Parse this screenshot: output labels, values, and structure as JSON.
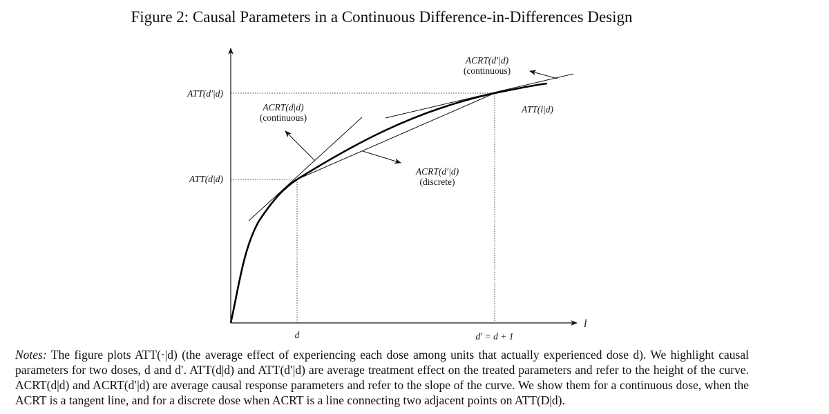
{
  "figure": {
    "title": "Figure 2: Causal Parameters in a Continuous Difference-in-Differences Design",
    "y_tick_high": "ATT(d′|d)",
    "y_tick_low": "ATT(d|d)",
    "x_axis_label": "l",
    "x_tick_d": "d",
    "x_tick_dprime": "d′ = d + 1",
    "annotations": {
      "acrt_dd_continuous_line1": "ACRT(d|d)",
      "acrt_dd_continuous_line2": "(continuous)",
      "acrt_dpd_continuous_line1": "ACRT(d′|d)",
      "acrt_dpd_continuous_line2": "(continuous)",
      "acrt_dpd_discrete_line1": "ACRT(d′|d)",
      "acrt_dpd_discrete_line2": "(discrete)",
      "curve_label": "ATT(l|d)"
    }
  },
  "notes": {
    "label": "Notes:",
    "text": "The figure plots ATT(·|d) (the average effect of experiencing each dose among units that actually experienced dose d). We highlight causal parameters for two doses, d and d′. ATT(d|d) and ATT(d′|d) are average treatment effect on the treated parameters and refer to the height of the curve. ACRT(d|d) and ACRT(d′|d) are average causal response parameters and refer to the slope of the curve. We show them for a continuous dose, when the ACRT is a tangent line, and for a discrete dose when ACRT is a line connecting two adjacent points on ATT(D|d)."
  }
}
